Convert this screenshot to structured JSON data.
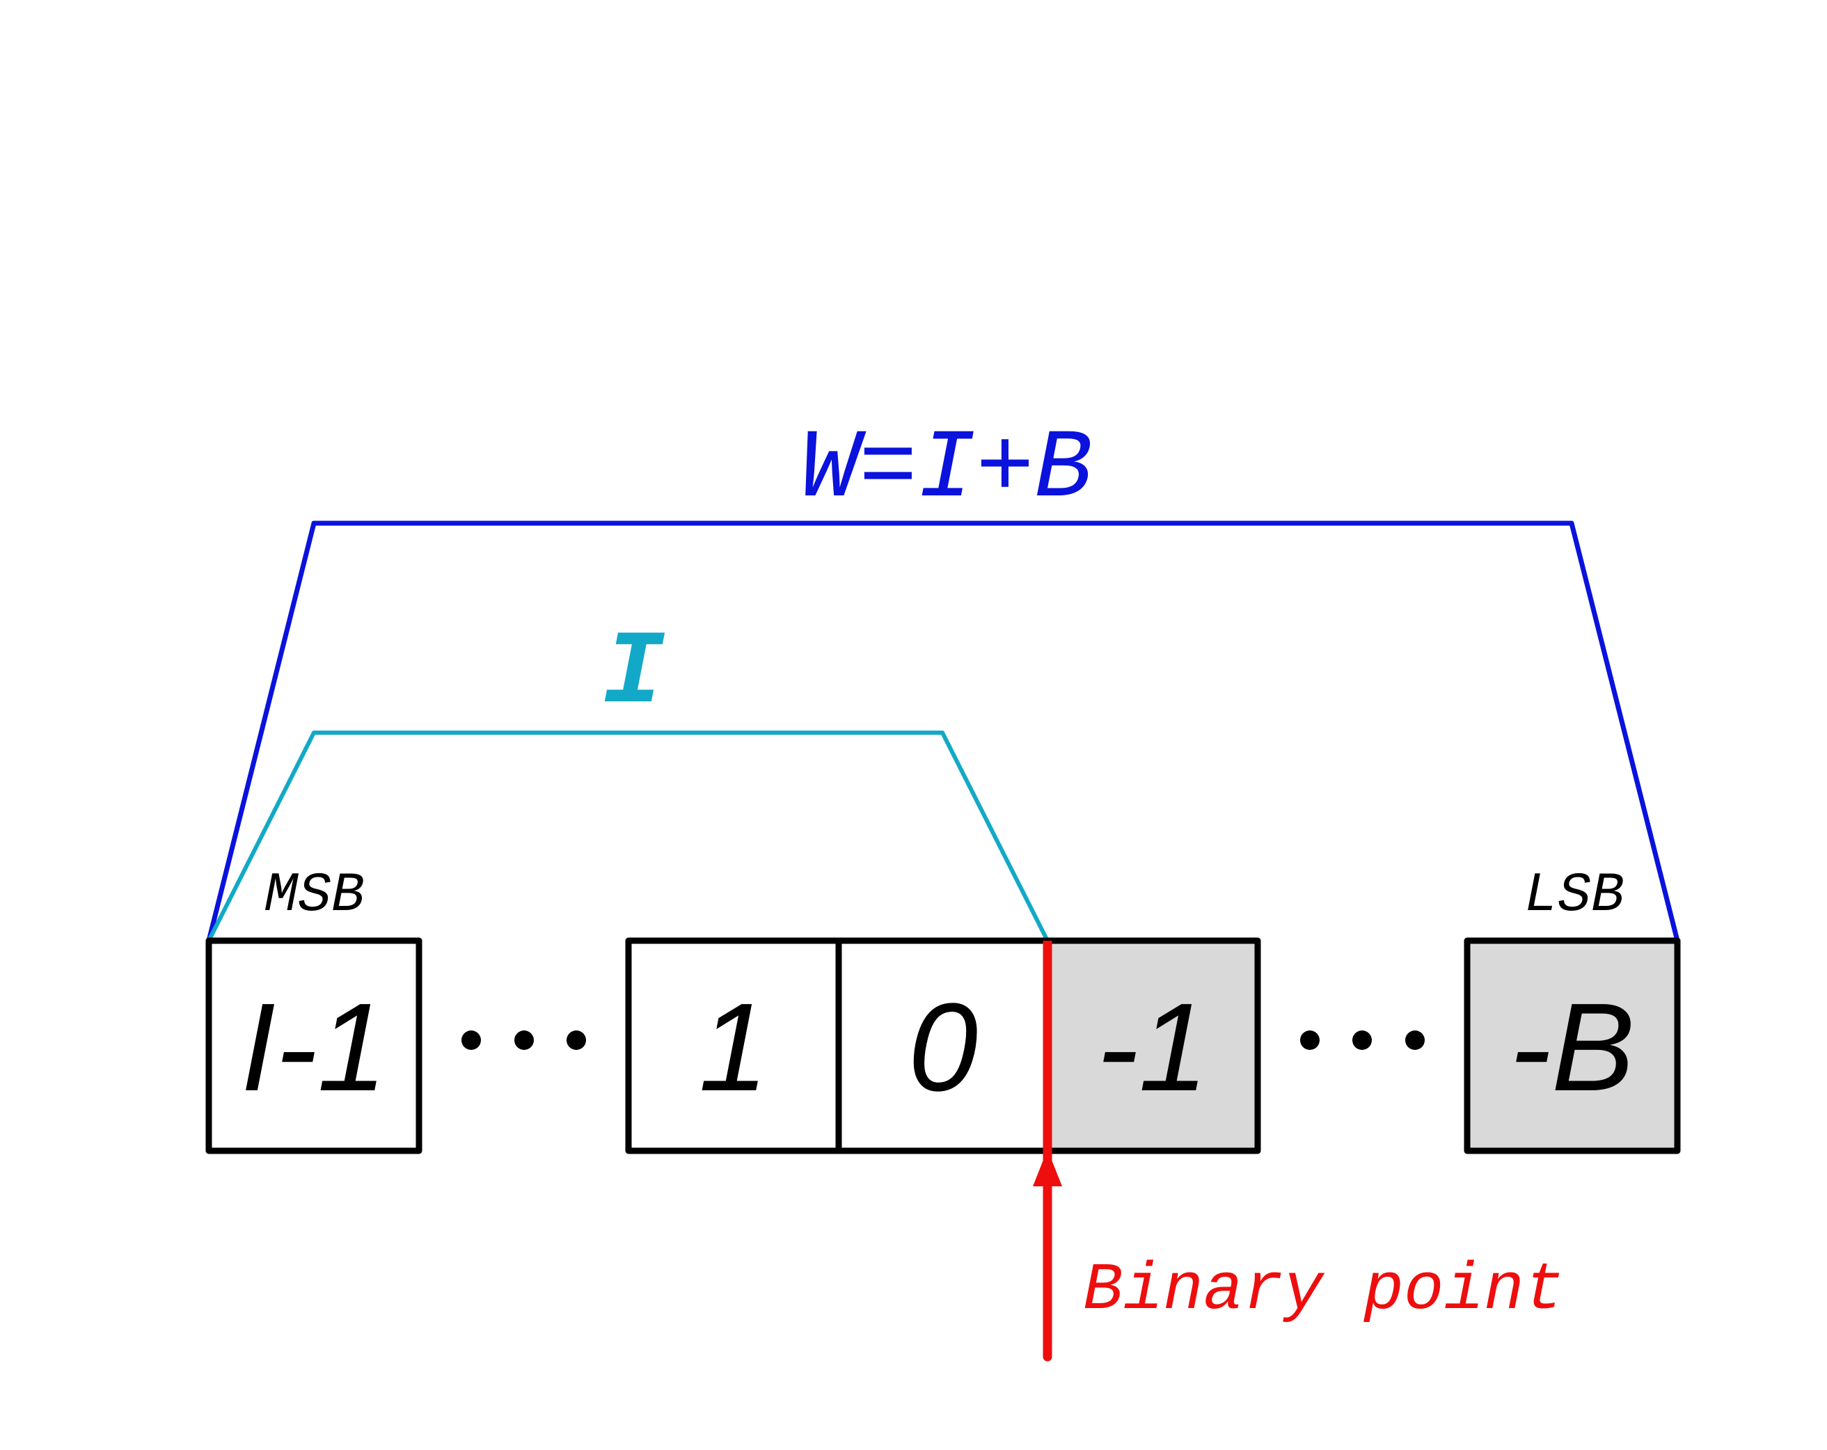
{
  "colors": {
    "width_bracket": "#0a12dc",
    "integer_bracket": "#12a9c8",
    "binary_point": "#ee0e0e",
    "box_stroke": "#000000",
    "fractional_fill": "#d9d9d9",
    "integer_fill": "#ffffff"
  },
  "labels": {
    "width_formula": "W=I+B",
    "integer_bits": "I",
    "msb": "MSB",
    "lsb": "LSB",
    "binary_point": "Binary point"
  },
  "bits": [
    {
      "label": "I-1",
      "kind": "integer"
    },
    {
      "label": "1",
      "kind": "integer"
    },
    {
      "label": "0",
      "kind": "integer"
    },
    {
      "label": "-1",
      "kind": "fractional"
    },
    {
      "label": "-B",
      "kind": "fractional"
    }
  ]
}
